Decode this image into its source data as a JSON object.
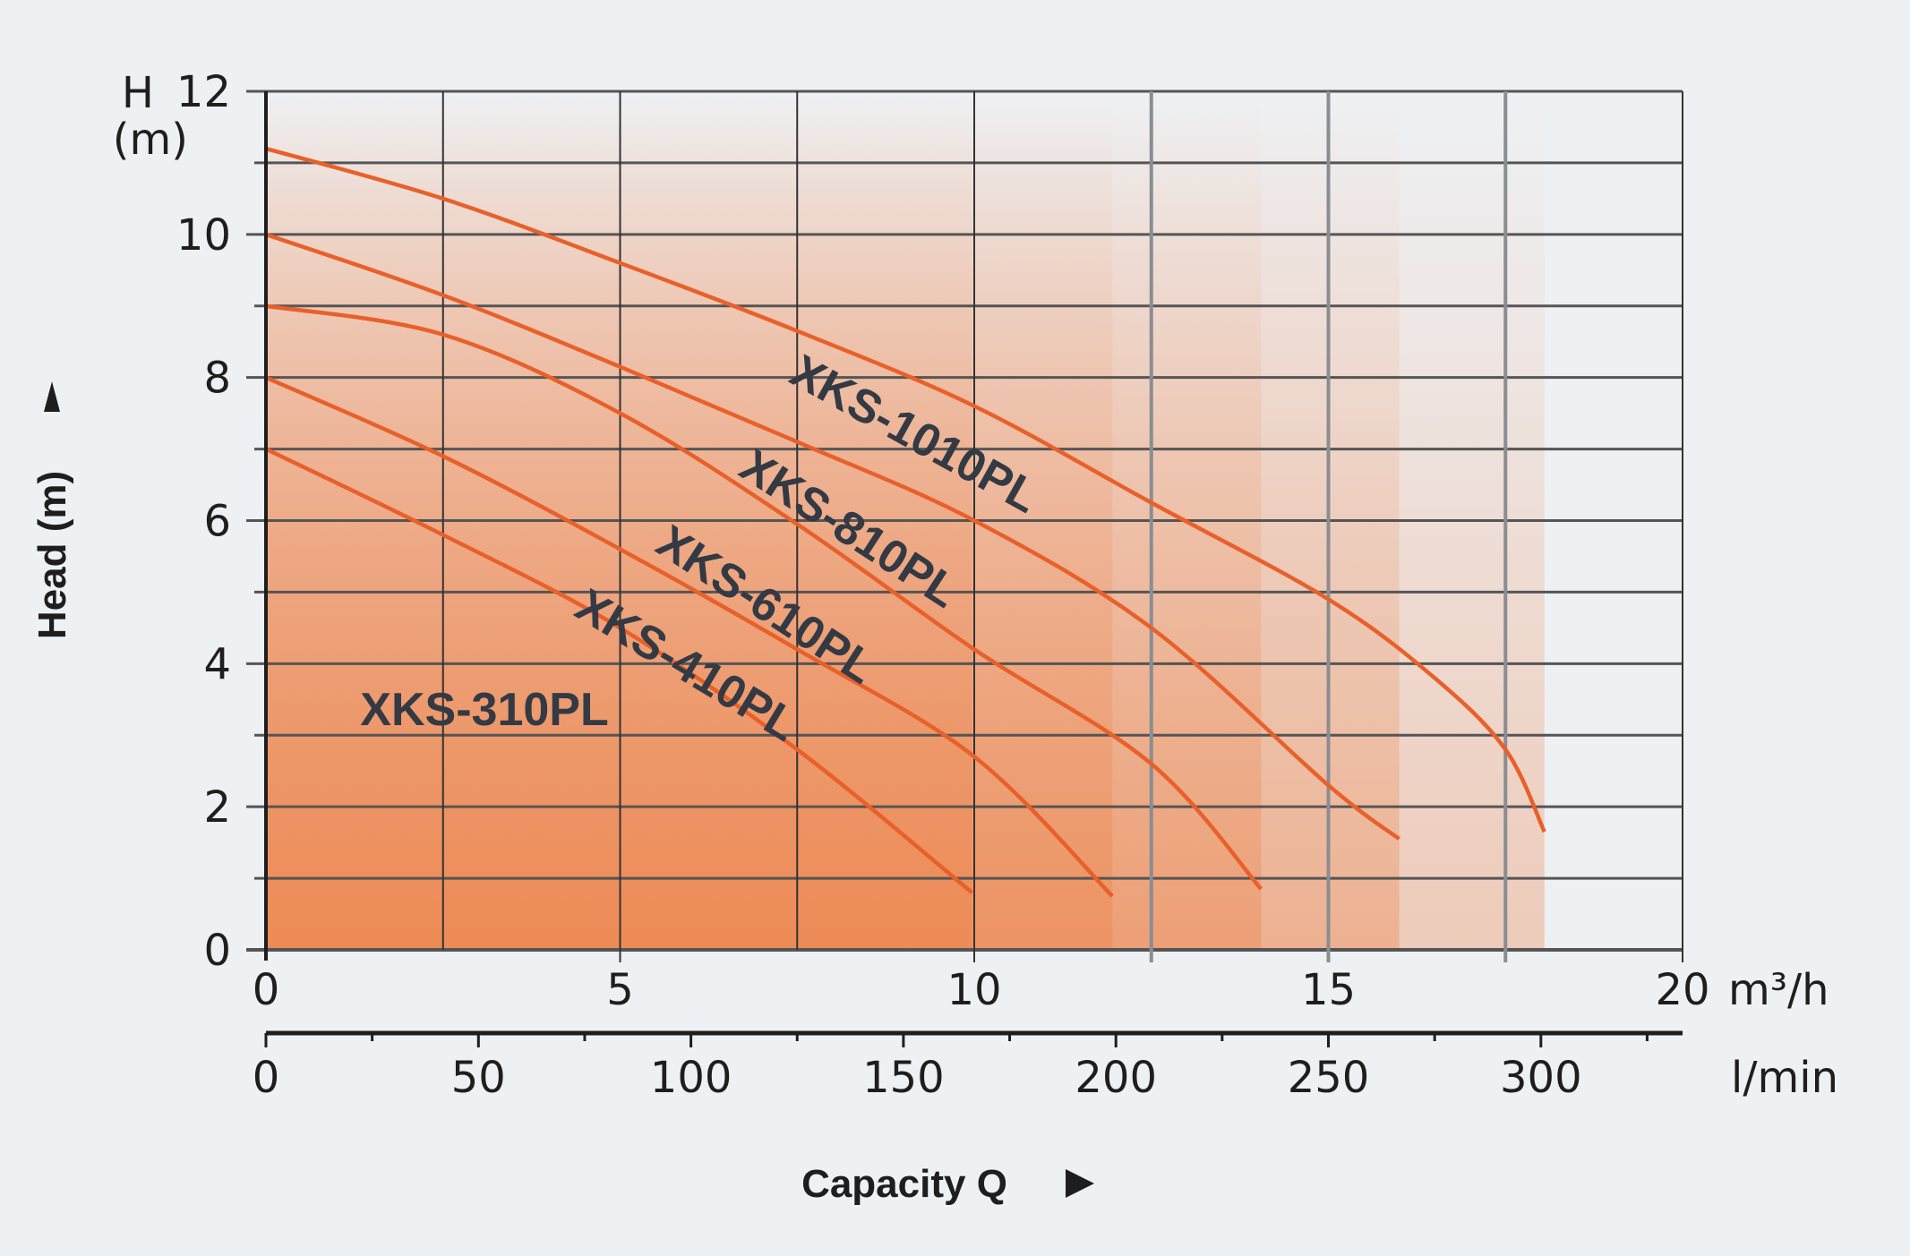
{
  "chart_data": {
    "type": "line",
    "xlabel": "Capacity Q",
    "ylabel": "Head (m)",
    "y_axis_top_label": "H",
    "y_unit_label": "(m)",
    "xlim": [
      0,
      20
    ],
    "ylim": [
      0,
      12
    ],
    "x_unit": "m³/h",
    "x2_unit": "l/min",
    "x_ticks": [
      0,
      5,
      10,
      15,
      20
    ],
    "x2_ticks": [
      0,
      50,
      100,
      150,
      200,
      250,
      300
    ],
    "y_ticks": [
      0,
      2,
      4,
      6,
      8,
      10,
      12
    ],
    "grid": true,
    "curve_color": "#e8602a",
    "fill_color": "#ec7a3c",
    "background": "#eef1f4",
    "series": [
      {
        "name": "XKS-1010PL",
        "points": [
          [
            0,
            11.2
          ],
          [
            2.5,
            10.5
          ],
          [
            5,
            9.6
          ],
          [
            7.5,
            8.65
          ],
          [
            10,
            7.6
          ],
          [
            12.5,
            6.25
          ],
          [
            15,
            4.9
          ],
          [
            16.5,
            3.8
          ],
          [
            17.5,
            2.8
          ],
          [
            18.05,
            1.65
          ]
        ]
      },
      {
        "name": "XKS-810PL",
        "points": [
          [
            0,
            10
          ],
          [
            2.5,
            9.15
          ],
          [
            5,
            8.15
          ],
          [
            7.5,
            7.1
          ],
          [
            10,
            6.0
          ],
          [
            12.5,
            4.5
          ],
          [
            15,
            2.3
          ],
          [
            16.0,
            1.55
          ]
        ]
      },
      {
        "name": "XKS-610PL",
        "points": [
          [
            0,
            9
          ],
          [
            2.5,
            8.6
          ],
          [
            5,
            7.5
          ],
          [
            7.5,
            5.95
          ],
          [
            10,
            4.2
          ],
          [
            12.5,
            2.6
          ],
          [
            14.05,
            0.85
          ]
        ]
      },
      {
        "name": "XKS-410PL",
        "points": [
          [
            0,
            8
          ],
          [
            2.5,
            6.9
          ],
          [
            5,
            5.6
          ],
          [
            7.5,
            4.2
          ],
          [
            10,
            2.7
          ],
          [
            11.95,
            0.75
          ]
        ]
      },
      {
        "name": "XKS-310PL",
        "points": [
          [
            0,
            7
          ],
          [
            2.5,
            5.8
          ],
          [
            5,
            4.5
          ],
          [
            7.5,
            2.8
          ],
          [
            9.97,
            0.8
          ]
        ]
      }
    ]
  }
}
